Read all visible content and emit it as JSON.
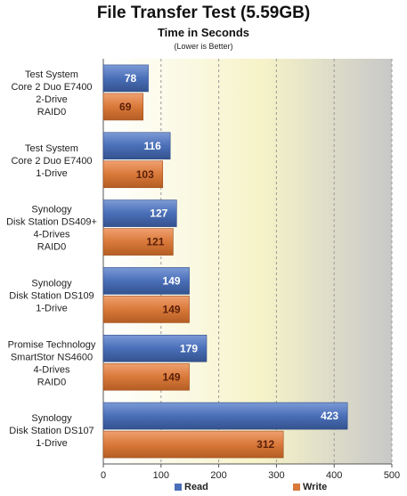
{
  "chart_data": {
    "type": "bar",
    "orientation": "horizontal",
    "title": "File Transfer Test (5.59GB)",
    "subtitle": "Time in Seconds",
    "note": "(Lower is Better)",
    "categories": [
      [
        "Test System",
        "Core 2 Duo  E7400",
        "2-Drive",
        "RAID0"
      ],
      [
        "Test System",
        "Core 2 Duo  E7400",
        "1-Drive"
      ],
      [
        "Synology",
        "Disk Station DS409+",
        "4-Drives",
        "RAID0"
      ],
      [
        "Synology",
        "Disk Station DS109",
        "1-Drive"
      ],
      [
        "Promise Technology",
        "SmartStor NS4600",
        "4-Drives",
        "RAID0"
      ],
      [
        "Synology",
        "Disk Station DS107",
        "1-Drive"
      ]
    ],
    "series": [
      {
        "name": "Read",
        "values": [
          78,
          116,
          127,
          149,
          179,
          423
        ],
        "color": "#4a6fb8"
      },
      {
        "name": "Write",
        "values": [
          69,
          103,
          121,
          149,
          149,
          312
        ],
        "color": "#d9793a"
      }
    ],
    "xlim": [
      0,
      500
    ],
    "xticks": [
      0,
      100,
      200,
      300,
      400,
      500
    ],
    "grid": true,
    "legend": "bottom"
  }
}
